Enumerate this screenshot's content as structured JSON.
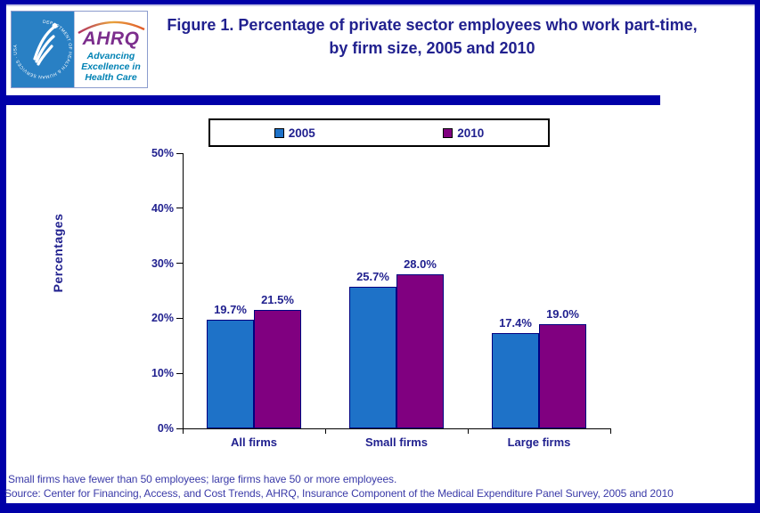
{
  "header": {
    "title": "Figure 1. Percentage of private sector employees who work part-time, by firm size, 2005 and 2010",
    "logo": {
      "acronym": "AHRQ",
      "tagline": [
        "Advancing",
        "Excellence in",
        "Health Care"
      ],
      "seal_text": "DEPARTMENT OF HEALTH & HUMAN SERVICES · USA"
    }
  },
  "chart_data": {
    "type": "bar",
    "title": "Percentage of private sector employees who work part-time, by firm size, 2005 and 2010",
    "categories": [
      "All firms",
      "Small firms",
      "Large firms"
    ],
    "series": [
      {
        "name": "2005",
        "color": "#1E72C8",
        "values": [
          19.7,
          25.7,
          17.4
        ],
        "value_labels": [
          "19.7%",
          "25.7%",
          "17.4%"
        ]
      },
      {
        "name": "2010",
        "color": "#800080",
        "values": [
          21.5,
          28.0,
          19.0
        ],
        "value_labels": [
          "21.5%",
          "28.0%",
          "19.0%"
        ]
      }
    ],
    "xlabel": "",
    "ylabel": "Percentages",
    "ylim": [
      0,
      50
    ],
    "yticks": [
      "0%",
      "10%",
      "20%",
      "30%",
      "40%",
      "50%"
    ],
    "grid": false,
    "legend_position": "top-center"
  },
  "footnotes": {
    "note": "Small firms have fewer than 50 employees; large firms have 50 or more employees.",
    "source": "Source: Center for Financing, Access, and Cost Trends, AHRQ, Insurance Component of the Medical Expenditure Panel Survey,  2005 and 2010"
  },
  "colors": {
    "frame_navy": "#0000A8",
    "title_text": "#21218F",
    "axis_text": "#21218F",
    "footnote_text": "#3A3AA8",
    "bar_2005": "#1E72C8",
    "bar_2010": "#800080",
    "bar_border": "#000080",
    "ahrq_purple": "#7C2E8D",
    "ahrq_teal": "#0082B4",
    "hhs_seal_blue": "#2980C4"
  }
}
